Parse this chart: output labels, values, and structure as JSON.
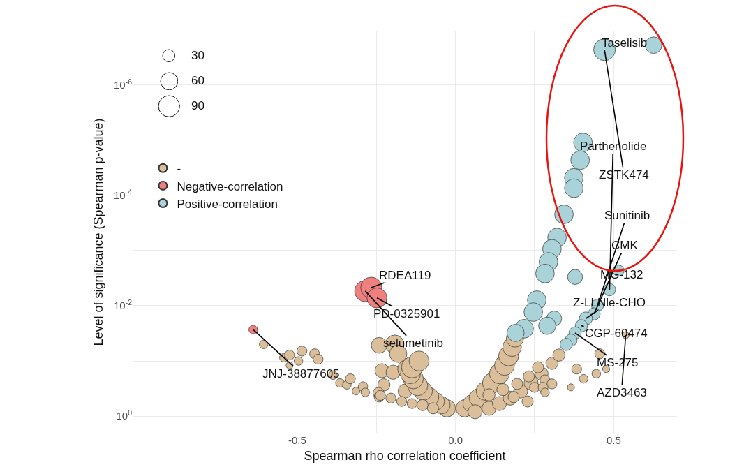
{
  "chart_data": {
    "type": "bubble",
    "xlabel": "Spearman rho correlation coefficient",
    "ylabel": "Level of significance (Spearman p-value)",
    "xlim": [
      -1.02,
      0.7
    ],
    "xticks": [
      {
        "value": -0.75,
        "label": null
      },
      {
        "value": -0.5,
        "label": "-0.5"
      },
      {
        "value": -0.25,
        "label": null
      },
      {
        "value": 0,
        "label": "0.0"
      },
      {
        "value": 0.25,
        "label": null
      },
      {
        "value": 0.5,
        "label": "0.5"
      }
    ],
    "ylim": [
      2,
      1.07e-07
    ],
    "log": "y",
    "yticks": [
      {
        "value": 1,
        "label": "10$^{0}$"
      },
      {
        "value": 0.1,
        "label": null
      },
      {
        "value": 0.01,
        "label": "10$^{-2}$"
      },
      {
        "value": 0.001,
        "label": null
      },
      {
        "value": 0.0001,
        "label": "10$^{-4}$"
      },
      {
        "value": 1e-05,
        "label": null
      },
      {
        "value": 1e-06,
        "label": "10$^{-6}$"
      }
    ],
    "grid": true,
    "legend": "top left",
    "marker": "circle",
    "size_legend": [
      30,
      60,
      90
    ],
    "series": [
      {
        "name": "-",
        "color": "#dbbf9a",
        "x": [
          -0.606,
          -0.542,
          -0.524,
          -0.524,
          -0.496,
          -0.485,
          -0.445,
          -0.434,
          -0.365,
          -0.343,
          -0.332,
          -0.314,
          -0.292,
          -0.285,
          -0.387,
          -0.192,
          -0.181,
          -0.241,
          -0.232,
          -0.197,
          -0.153,
          -0.226,
          -0.159,
          -0.243,
          -0.241,
          -0.027,
          -0.044,
          -0.062,
          -0.082,
          -0.102,
          -0.119,
          -0.133,
          -0.142,
          -0.137,
          -0.115,
          -0.204,
          -0.17,
          -0.137,
          -0.104,
          -0.071,
          -0.237,
          0.029,
          0.051,
          0.073,
          0.095,
          0.117,
          0.139,
          0.155,
          0.168,
          0.179,
          0.188,
          0.062,
          0.106,
          0.139,
          0.173,
          0.206,
          0.239,
          0.272,
          0.305,
          0.327,
          0.106,
          0.15,
          0.195,
          0.228,
          0.25,
          0.283,
          0.261,
          0.232,
          0.184,
          0.456,
          0.383,
          0.445,
          0.405,
          0.365,
          0.476,
          0.305,
          0.277,
          0.283,
          0.538
        ],
        "values": [
          0.05,
          0.087,
          0.078,
          0.12,
          0.1,
          0.066,
          0.074,
          0.093,
          0.25,
          0.27,
          0.21,
          0.35,
          0.29,
          0.37,
          0.18,
          0.05,
          0.074,
          0.052,
          0.15,
          0.16,
          0.14,
          0.27,
          0.35,
          0.38,
          0.45,
          0.72,
          0.63,
          0.54,
          0.45,
          0.35,
          0.28,
          0.21,
          0.17,
          0.13,
          0.1,
          0.47,
          0.54,
          0.59,
          0.63,
          0.72,
          0.42,
          0.72,
          0.59,
          0.47,
          0.35,
          0.25,
          0.17,
          0.12,
          0.081,
          0.056,
          0.039,
          0.83,
          0.72,
          0.59,
          0.47,
          0.35,
          0.25,
          0.17,
          0.11,
          0.078,
          0.41,
          0.33,
          0.26,
          0.54,
          0.3,
          0.22,
          0.13,
          0.19,
          0.45,
          0.074,
          0.14,
          0.17,
          0.21,
          0.3,
          0.14,
          0.26,
          0.3,
          0.37,
          0.034
        ],
        "sizes": [
          15,
          15,
          20,
          10,
          15,
          20,
          20,
          20,
          15,
          15,
          20,
          12,
          18,
          15,
          15,
          70,
          60,
          50,
          40,
          40,
          70,
          30,
          40,
          25,
          20,
          60,
          60,
          60,
          70,
          70,
          80,
          80,
          80,
          90,
          80,
          20,
          20,
          20,
          25,
          25,
          20,
          60,
          60,
          70,
          70,
          80,
          80,
          80,
          80,
          70,
          60,
          40,
          40,
          40,
          40,
          40,
          40,
          35,
          30,
          30,
          30,
          30,
          25,
          25,
          20,
          20,
          25,
          25,
          25,
          20,
          20,
          15,
          15,
          10,
          10,
          20,
          20,
          15,
          10
        ]
      },
      {
        "name": "Negative-correlation",
        "color": "#f08080",
        "x": [
          -0.285,
          -0.266,
          -0.248,
          -0.639
        ],
        "values": [
          0.0054,
          0.0047,
          0.0072,
          0.027
        ],
        "sizes": [
          90,
          90,
          80,
          15
        ]
      },
      {
        "name": "Positive-correlation",
        "color": "#a9d3d8",
        "x": [
          0.471,
          0.626,
          0.403,
          0.394,
          0.374,
          0.374,
          0.343,
          0.321,
          0.305,
          0.294,
          0.283,
          0.378,
          0.257,
          0.246,
          0.217,
          0.312,
          0.29,
          0.19,
          0.515,
          0.487,
          0.449,
          0.438,
          0.412,
          0.398,
          0.378,
          0.365,
          0.35
        ],
        "values": [
          2.3e-07,
          1.9e-07,
          1.1e-05,
          2.3e-05,
          4.8e-05,
          7.4e-05,
          0.00022,
          0.00058,
          0.00093,
          0.0016,
          0.0026,
          0.003,
          0.0079,
          0.013,
          0.026,
          0.017,
          0.023,
          0.031,
          0.0023,
          0.0051,
          0.0098,
          0.014,
          0.017,
          0.023,
          0.031,
          0.042,
          0.05
        ],
        "sizes": [
          95,
          55,
          70,
          70,
          70,
          70,
          70,
          70,
          70,
          70,
          70,
          45,
          70,
          70,
          70,
          45,
          60,
          60,
          25,
          30,
          30,
          30,
          35,
          30,
          30,
          30,
          30
        ]
      }
    ],
    "annotations": [
      {
        "text": "Taselisib",
        "x": 0.626,
        "y": 1.9e-07
      },
      {
        "text": "ZSTK474",
        "x": 0.471,
        "y": 2.3e-07
      },
      {
        "text": "Parthenolide",
        "x": 0.487,
        "y": 0.0051
      },
      {
        "text": "Sunitinib",
        "x": 0.449,
        "y": 0.0098
      },
      {
        "text": "CMK",
        "x": 0.438,
        "y": 0.014
      },
      {
        "text": "MG-132",
        "x": 0.515,
        "y": 0.0023
      },
      {
        "text": "Z-LLNle-CHO",
        "x": 0.412,
        "y": 0.017
      },
      {
        "text": "CGP-60474",
        "x": 0.398,
        "y": 0.023
      },
      {
        "text": "MS-275",
        "x": 0.378,
        "y": 0.031
      },
      {
        "text": "AZD3463",
        "x": 0.538,
        "y": 0.034
      },
      {
        "text": "RDEA119",
        "x": -0.266,
        "y": 0.0047
      },
      {
        "text": "PD-0325901",
        "x": -0.248,
        "y": 0.0072
      },
      {
        "text": "selumetinib",
        "x": -0.285,
        "y": 0.0054
      },
      {
        "text": "JNJ-38877605",
        "x": -0.639,
        "y": 0.027
      }
    ]
  }
}
